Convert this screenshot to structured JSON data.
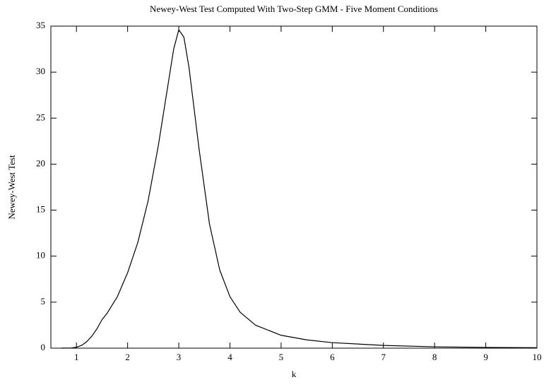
{
  "chart_data": {
    "type": "line",
    "title": "Newey-West Test Computed With Two-Step GMM - Five Moment Conditions",
    "xlabel": "k",
    "ylabel": "Newey-West Test",
    "x": [
      0.7,
      0.9,
      1.0,
      1.1,
      1.2,
      1.3,
      1.4,
      1.5,
      1.6,
      1.8,
      2.0,
      2.2,
      2.4,
      2.6,
      2.8,
      2.9,
      3.0,
      3.1,
      3.2,
      3.4,
      3.6,
      3.8,
      4.0,
      4.2,
      4.5,
      5.0,
      5.5,
      6.0,
      7.0,
      8.0,
      9.0,
      10.0
    ],
    "values": [
      0,
      0.02,
      0.1,
      0.3,
      0.7,
      1.3,
      2.1,
      3.1,
      3.8,
      5.6,
      8.2,
      11.5,
      16,
      22,
      29,
      32.5,
      34.6,
      33.8,
      30.5,
      21.5,
      13.5,
      8.5,
      5.6,
      3.9,
      2.5,
      1.4,
      0.9,
      0.6,
      0.3,
      0.15,
      0.08,
      0.05
    ],
    "color": "#000000",
    "xlim": [
      0.5,
      10
    ],
    "xticks": [
      1,
      2,
      3,
      4,
      5,
      6,
      7,
      8,
      9,
      10
    ],
    "ylim": [
      0,
      35
    ],
    "yticks": [
      0,
      5,
      10,
      15,
      20,
      25,
      30,
      35
    ],
    "grid": false
  }
}
